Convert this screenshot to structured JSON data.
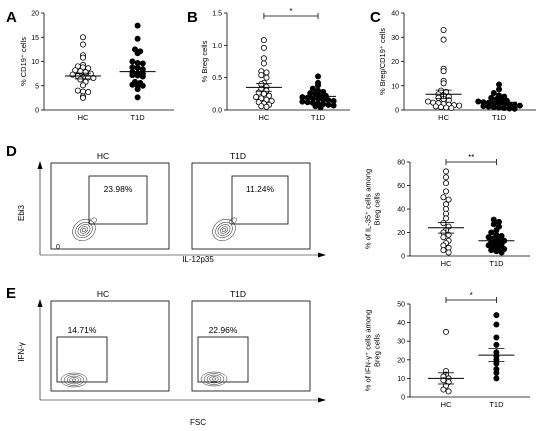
{
  "chart_data": [
    {
      "id": "A",
      "type": "scatter",
      "panel_label": "A",
      "ylabel": "% CD19⁺ cells",
      "ylim": [
        0,
        20
      ],
      "yticks": [
        0,
        5,
        10,
        15,
        20
      ],
      "categories": [
        "HC",
        "T1D"
      ],
      "series": [
        {
          "category": "HC",
          "marker": "open",
          "values": [
            15,
            13.5,
            11.3,
            10.8,
            9.3,
            9.0,
            8.8,
            8.6,
            8.2,
            8.0,
            7.8,
            7.5,
            7.3,
            7.0,
            6.8,
            6.7,
            6.6,
            6.3,
            5.8,
            5.1,
            4.0,
            3.8,
            3.7,
            2.8,
            2.5
          ],
          "mean": 7.0,
          "sem": 0.6
        },
        {
          "category": "T1D",
          "marker": "filled",
          "values": [
            17.4,
            14.7,
            12.5,
            12.1,
            11.7,
            10.0,
            9.7,
            9.6,
            8.8,
            8.7,
            8.4,
            7.8,
            7.6,
            7.5,
            7.2,
            7.1,
            6.9,
            5.8,
            5.6,
            5.2,
            5.1,
            5.0,
            4.3,
            2.6
          ],
          "mean": 7.9,
          "sem": 0.7
        }
      ]
    },
    {
      "id": "B",
      "type": "scatter",
      "panel_label": "B",
      "ylabel": "% Breg cells",
      "ylim": [
        0,
        1.5
      ],
      "yticks": [
        0.0,
        0.5,
        1.0,
        1.5
      ],
      "categories": [
        "HC",
        "T1D"
      ],
      "significance": "*",
      "series": [
        {
          "category": "HC",
          "marker": "open",
          "values": [
            1.08,
            0.96,
            0.8,
            0.72,
            0.6,
            0.58,
            0.54,
            0.5,
            0.42,
            0.4,
            0.36,
            0.33,
            0.3,
            0.27,
            0.25,
            0.22,
            0.2,
            0.18,
            0.16,
            0.14,
            0.12,
            0.1,
            0.08,
            0.06,
            0.05
          ],
          "mean": 0.35,
          "sem": 0.06
        },
        {
          "category": "T1D",
          "marker": "filled",
          "values": [
            0.52,
            0.42,
            0.38,
            0.33,
            0.3,
            0.28,
            0.26,
            0.25,
            0.23,
            0.22,
            0.2,
            0.19,
            0.18,
            0.17,
            0.16,
            0.15,
            0.14,
            0.13,
            0.12,
            0.11,
            0.1,
            0.09,
            0.08,
            0.07,
            0.06,
            0.04
          ],
          "mean": 0.21,
          "sem": 0.03
        }
      ]
    },
    {
      "id": "C",
      "type": "scatter",
      "panel_label": "C",
      "ylabel": "% Breg/CD19⁺ cells",
      "ylim": [
        0,
        40
      ],
      "yticks": [
        0,
        10,
        20,
        30,
        40
      ],
      "categories": [
        "HC",
        "T1D"
      ],
      "series": [
        {
          "category": "HC",
          "marker": "open",
          "values": [
            33,
            29,
            17,
            16,
            12,
            11,
            8,
            7.5,
            6.5,
            6,
            5.5,
            5,
            4.5,
            4,
            3.5,
            3,
            2.8,
            2.5,
            2.2,
            2,
            1.8,
            1.5,
            1.2,
            1,
            0.8
          ],
          "mean": 6.5,
          "sem": 1.7
        },
        {
          "category": "T1D",
          "marker": "filled",
          "values": [
            10.5,
            8.5,
            7,
            6,
            5.5,
            5,
            4.5,
            4,
            3.8,
            3.5,
            3.2,
            3,
            2.8,
            2.6,
            2.4,
            2.2,
            2,
            1.8,
            1.6,
            1.4,
            1.2,
            1,
            0.8,
            0.6,
            0.5
          ],
          "mean": 3.2,
          "sem": 0.5
        }
      ]
    },
    {
      "id": "D",
      "type": "scatter",
      "panel_label": "D",
      "ylabel_lines": [
        "% of IL-35⁺ cells among",
        "Breg cells"
      ],
      "ylim": [
        0,
        80
      ],
      "yticks": [
        0,
        20,
        40,
        60,
        80
      ],
      "categories": [
        "HC",
        "T1D"
      ],
      "significance": "**",
      "series": [
        {
          "category": "HC",
          "marker": "open",
          "values": [
            72,
            67,
            62,
            55,
            50,
            48,
            44,
            40,
            36,
            32,
            28,
            25,
            22,
            20,
            18,
            16,
            13,
            11,
            9,
            7,
            5,
            3
          ],
          "mean": 24,
          "sem": 4.5
        },
        {
          "category": "T1D",
          "marker": "filled",
          "values": [
            31,
            29,
            27,
            25,
            22,
            20,
            18,
            17,
            16,
            15,
            14,
            13,
            12,
            11,
            10,
            9,
            8,
            7,
            6,
            5,
            4,
            3
          ],
          "mean": 13,
          "sem": 1.8
        }
      ]
    },
    {
      "id": "E",
      "type": "scatter",
      "panel_label": "E",
      "ylabel_lines": [
        "% of IFN-γ⁺ cells among",
        "Breg cells"
      ],
      "ylim": [
        0,
        50
      ],
      "yticks": [
        0,
        10,
        20,
        30,
        40,
        50
      ],
      "categories": [
        "HC",
        "T1D"
      ],
      "significance": "*",
      "series": [
        {
          "category": "HC",
          "marker": "open",
          "values": [
            35,
            14,
            12,
            11,
            10,
            9,
            8,
            6,
            4,
            3
          ],
          "mean": 10,
          "sem": 3
        },
        {
          "category": "T1D",
          "marker": "filled",
          "values": [
            44,
            39,
            32,
            28,
            24,
            22,
            20,
            18,
            15,
            13,
            10
          ],
          "mean": 22.5,
          "sem": 3.5
        }
      ]
    }
  ],
  "flow": {
    "D": {
      "y_label": "Ebi3",
      "x_label": "IL-12p35",
      "zero_label": "0",
      "plots": [
        {
          "title": "HC",
          "gate_percent": "23.98%"
        },
        {
          "title": "T1D",
          "gate_percent": "11.24%"
        }
      ]
    },
    "E": {
      "y_label": "IFN-γ",
      "x_label": "FSC",
      "plots": [
        {
          "title": "HC",
          "gate_percent": "14.71%"
        },
        {
          "title": "T1D",
          "gate_percent": "22.96%"
        }
      ]
    }
  },
  "colors": {
    "ink": "#000000",
    "open_fill": "#ffffff"
  }
}
